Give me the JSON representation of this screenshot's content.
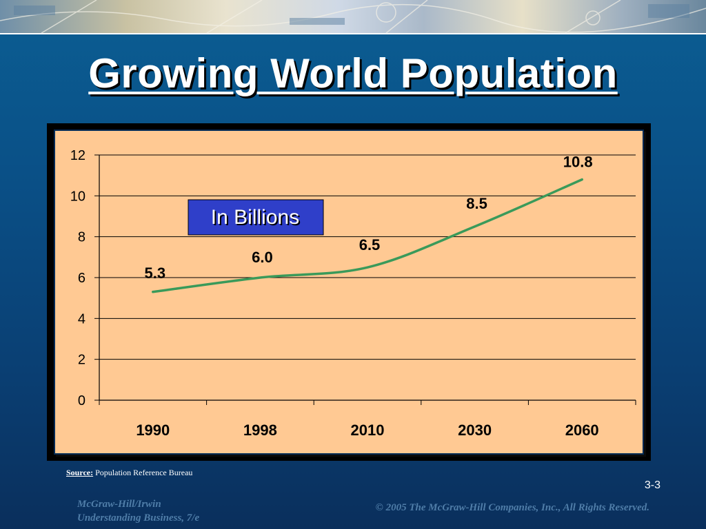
{
  "slide": {
    "title": "Growing World Population",
    "source_label": "Source:",
    "source_text": "Population Reference Bureau",
    "page_number": "3-3",
    "footer_left_line1": "McGraw-Hill/Irwin",
    "footer_left_line2": "Understanding Business, 7/e",
    "footer_right": "© 2005 The McGraw-Hill Companies, Inc., All Rights Reserved."
  },
  "chart_data": {
    "type": "line",
    "title": "",
    "xlabel": "",
    "ylabel": "",
    "annotation": "In Billions",
    "categories": [
      "1990",
      "1998",
      "2010",
      "2030",
      "2060"
    ],
    "series": [
      {
        "values": [
          5.3,
          6.0,
          6.5,
          8.5,
          10.8
        ],
        "color": "#3a9a5a"
      }
    ],
    "data_labels": [
      "5.3",
      "6.0",
      "6.5",
      "8.5",
      "10.8"
    ],
    "ylim": [
      0,
      12
    ],
    "yticks": [
      0,
      2,
      4,
      6,
      8,
      10,
      12
    ],
    "grid": true,
    "legend": "none",
    "colors": {
      "plot_bg": "#ffc993",
      "annotation_bg": "#2f3fc9",
      "line": "#3a9a5a"
    }
  }
}
